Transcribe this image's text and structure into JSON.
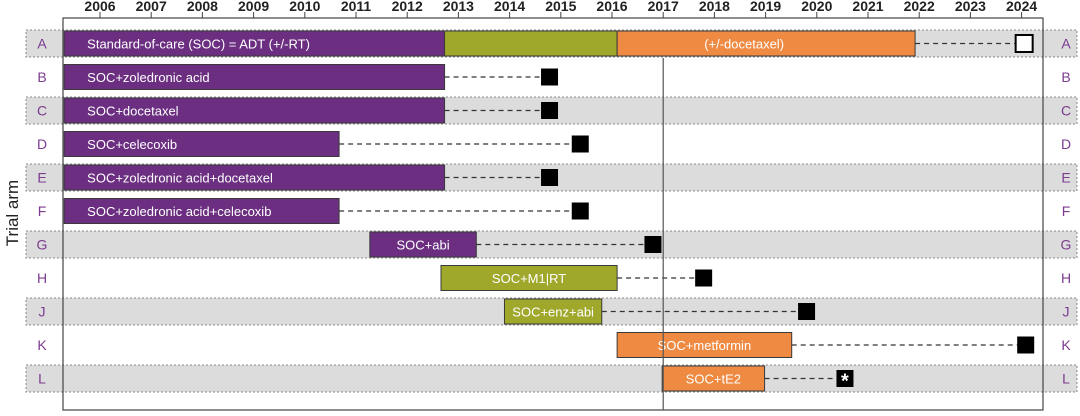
{
  "chart_data": {
    "type": "gantt",
    "title": "",
    "ylabel": "Trial arm",
    "xlabel": "",
    "xlim": [
      2005,
      2024.5
    ],
    "x_ticks": [
      "2006",
      "2007",
      "2008",
      "2009",
      "2010",
      "2011",
      "2012",
      "2013",
      "2014",
      "2015",
      "2016",
      "2017",
      "2018",
      "2019",
      "2020",
      "2021",
      "2022",
      "2023",
      "2024"
    ],
    "reference_line_x": 2017.0,
    "arms": [
      {
        "label": "A",
        "shaded": true,
        "bars": [
          {
            "start": 2005.3,
            "end": 2012.73,
            "text": "Standard-of-care (SOC) = ADT (+/-RT)",
            "color": "#6b2e80"
          },
          {
            "start": 2012.73,
            "end": 2016.1,
            "text": "",
            "color": "#a0a82c"
          },
          {
            "start": 2016.1,
            "end": 2021.92,
            "text": "(+/-docetaxel)",
            "color": "#ee8a42"
          }
        ],
        "dash_to": 2024.05,
        "marker": {
          "x": 2024.05,
          "style": "open",
          "text": ""
        }
      },
      {
        "label": "B",
        "shaded": false,
        "bars": [
          {
            "start": 2005.3,
            "end": 2012.73,
            "text": "SOC+zoledronic acid",
            "color": "#6b2e80"
          }
        ],
        "dash_to": 2014.78,
        "marker": {
          "x": 2014.78,
          "style": "filled",
          "text": ""
        }
      },
      {
        "label": "C",
        "shaded": true,
        "bars": [
          {
            "start": 2005.3,
            "end": 2012.73,
            "text": "SOC+docetaxel",
            "color": "#6b2e80"
          }
        ],
        "dash_to": 2014.78,
        "marker": {
          "x": 2014.78,
          "style": "filled",
          "text": ""
        }
      },
      {
        "label": "D",
        "shaded": false,
        "bars": [
          {
            "start": 2005.3,
            "end": 2010.67,
            "text": "SOC+celecoxib",
            "color": "#6b2e80"
          }
        ],
        "dash_to": 2015.38,
        "marker": {
          "x": 2015.38,
          "style": "filled",
          "text": ""
        }
      },
      {
        "label": "E",
        "shaded": true,
        "bars": [
          {
            "start": 2005.3,
            "end": 2012.73,
            "text": "SOC+zoledronic acid+docetaxel",
            "color": "#6b2e80"
          }
        ],
        "dash_to": 2014.78,
        "marker": {
          "x": 2014.78,
          "style": "filled",
          "text": ""
        }
      },
      {
        "label": "F",
        "shaded": false,
        "bars": [
          {
            "start": 2005.3,
            "end": 2010.67,
            "text": "SOC+zoledronic acid+celecoxib",
            "color": "#6b2e80"
          }
        ],
        "dash_to": 2015.38,
        "marker": {
          "x": 2015.38,
          "style": "filled",
          "text": ""
        }
      },
      {
        "label": "G",
        "shaded": true,
        "bars": [
          {
            "start": 2011.27,
            "end": 2013.35,
            "text": "SOC+abi",
            "color": "#6b2e80"
          }
        ],
        "dash_to": 2016.8,
        "marker": {
          "x": 2016.8,
          "style": "filled",
          "text": ""
        }
      },
      {
        "label": "H",
        "shaded": false,
        "bars": [
          {
            "start": 2012.66,
            "end": 2016.1,
            "text": "SOC+M1|RT",
            "color": "#a0a82c"
          }
        ],
        "dash_to": 2017.79,
        "marker": {
          "x": 2017.79,
          "style": "filled",
          "text": ""
        }
      },
      {
        "label": "J",
        "shaded": true,
        "bars": [
          {
            "start": 2013.9,
            "end": 2015.8,
            "text": "SOC+enz+abi",
            "color": "#a0a82c"
          }
        ],
        "dash_to": 2019.8,
        "marker": {
          "x": 2019.8,
          "style": "filled",
          "text": ""
        }
      },
      {
        "label": "K",
        "shaded": false,
        "bars": [
          {
            "start": 2016.1,
            "end": 2019.51,
            "text": "SOC+metformin",
            "color": "#ee8a42"
          }
        ],
        "dash_to": 2024.08,
        "marker": {
          "x": 2024.08,
          "style": "filled",
          "text": ""
        }
      },
      {
        "label": "L",
        "shaded": true,
        "bars": [
          {
            "start": 2016.98,
            "end": 2018.98,
            "text": "SOC+tE2",
            "color": "#ee8a42"
          }
        ],
        "dash_to": 2020.55,
        "marker": {
          "x": 2020.55,
          "style": "star",
          "text": "*"
        }
      }
    ],
    "colors": {
      "purple": "#6b2e80",
      "olive": "#a0a82c",
      "orange": "#ee8a42",
      "row_shade": "#dcdcdc",
      "row_label": "#7b3b8f",
      "marker": "#000000"
    },
    "legend": "none",
    "grid": false
  }
}
